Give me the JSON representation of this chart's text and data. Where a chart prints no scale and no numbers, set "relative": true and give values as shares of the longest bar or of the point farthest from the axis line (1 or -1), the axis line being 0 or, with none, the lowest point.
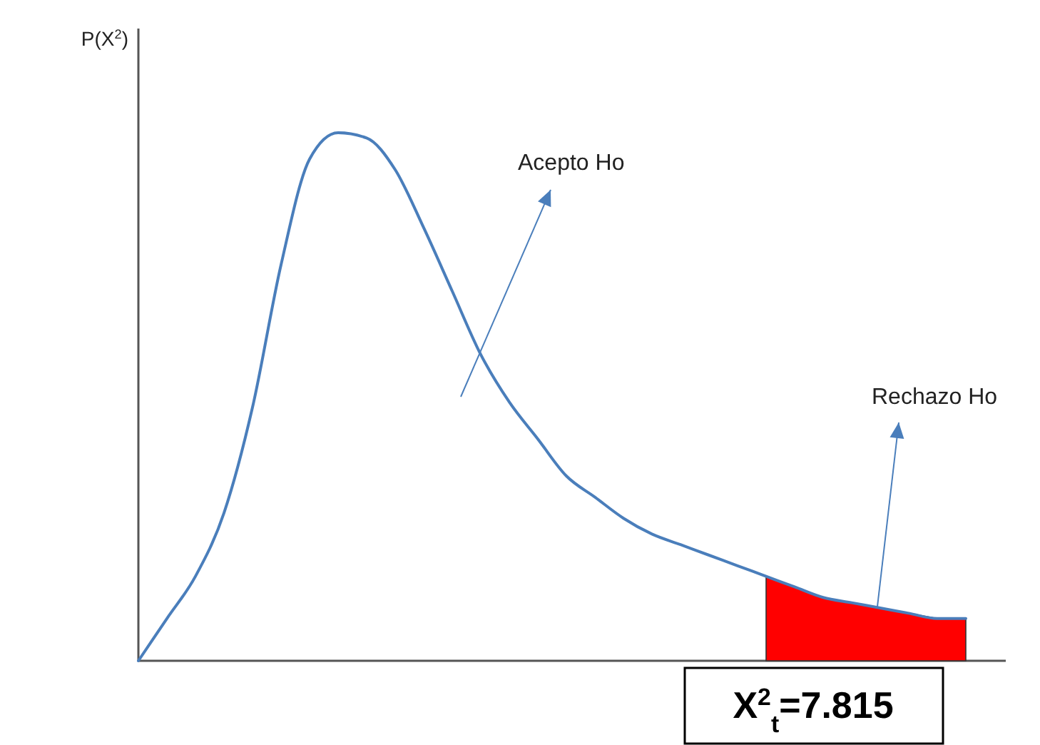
{
  "chart_data": {
    "type": "line",
    "relative": true,
    "ylabel": "P(X$^{2}$)",
    "categories": [
      null,
      null,
      null,
      null,
      null,
      null,
      null,
      null,
      null,
      null,
      null,
      null,
      null,
      null,
      null,
      null,
      null,
      null,
      null,
      null,
      null,
      null,
      null,
      null,
      null,
      null,
      null,
      null,
      null,
      null
    ],
    "series": [
      {
        "type": "area",
        "color": "#ff0000",
        "values": [
          null,
          null,
          null,
          null,
          null,
          null,
          null,
          null,
          null,
          null,
          null,
          null,
          null,
          null,
          null,
          null,
          null,
          null,
          null,
          null,
          null,
          null,
          0.16,
          0.14,
          0.12,
          0.11,
          0.1,
          0.09,
          0.08,
          0.08
        ]
      },
      {
        "color": "#4a7ebb",
        "values": [
          0,
          0.08,
          0.16,
          0.28,
          0.48,
          0.75,
          0.95,
          1,
          0.99,
          0.93,
          0.82,
          0.7,
          0.58,
          0.49,
          0.42,
          0.35,
          0.31,
          0.27,
          0.24,
          0.22,
          0.2,
          0.18,
          0.16,
          0.14,
          0.12,
          0.11,
          0.1,
          0.09,
          0.08,
          0.08
        ]
      }
    ],
    "annotations": [
      "Acepto Ho",
      "Rechazo Ho",
      "X$^{2}$$_{t}$=7.815"
    ]
  }
}
